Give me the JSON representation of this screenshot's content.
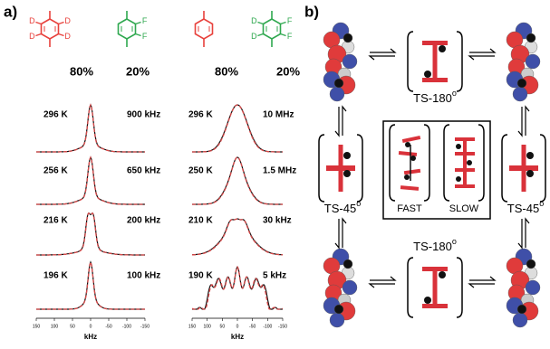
{
  "panel_a": {
    "label": "a)",
    "molecules": [
      {
        "substituents": [
          "D",
          "D",
          "D",
          "D"
        ]
      },
      {
        "substituents": [
          "F",
          "F"
        ]
      },
      {
        "substituents": []
      },
      {
        "substituents": [
          "D",
          "D",
          "F",
          "F"
        ]
      }
    ],
    "fractions": [
      "80%",
      "20%",
      "80%",
      "20%"
    ],
    "columns": [
      {
        "temperatures": [
          "296 K",
          "256 K",
          "216 K",
          "196 K"
        ],
        "rates": [
          "900 kHz",
          "650 kHz",
          "200 kHz",
          "100 kHz"
        ],
        "axis_ticks": [
          "150",
          "100",
          "50",
          "0",
          "-50",
          "-100",
          "-150"
        ],
        "axis_label": "kHz"
      },
      {
        "temperatures": [
          "296 K",
          "250 K",
          "210 K",
          "190 K"
        ],
        "rates": [
          "10 MHz",
          "1.5 MHz",
          "30 kHz",
          "5 kHz"
        ],
        "axis_ticks": [
          "150",
          "100",
          "50",
          "0",
          "-50",
          "-100",
          "-150"
        ],
        "axis_label": "kHz"
      }
    ]
  },
  "panel_b": {
    "label": "b)",
    "transition_states": [
      {
        "text": "TS-180",
        "superscript": "o"
      },
      {
        "text": "TS-45",
        "superscript": "o"
      },
      {
        "text": "TS-45",
        "superscript": "o"
      },
      {
        "text": "TS-180",
        "superscript": "o"
      }
    ],
    "legend": [
      "FAST",
      "SLOW"
    ]
  }
}
